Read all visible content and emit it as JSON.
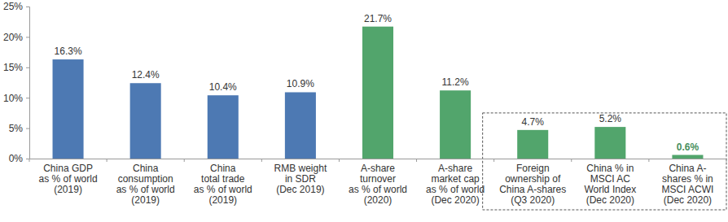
{
  "chart_data": {
    "type": "bar",
    "categories": [
      "China GDP\nas % of world\n(2019)",
      "China\nconsumption\nas % of world\n(2019)",
      "China\ntotal trade\nas % of world\n(2019)",
      "RMB weight\nin SDR\n(Dec 2019)",
      "A-share\nturnover\nas % of world\n(2020)",
      "A-share\nmarket cap\nas % of world\n(Dec 2020)",
      "Foreign\nownership of\nChina A-shares\n(Q3 2020)",
      "China % in\nMSCI AC\nWorld Index\n(Dec 2020)",
      "China A-\nshares % in\nMSCI ACWI\n(Dec 2020)"
    ],
    "values": [
      16.3,
      12.4,
      10.4,
      10.9,
      21.7,
      11.2,
      4.7,
      5.2,
      0.6
    ],
    "value_labels": [
      "16.3%",
      "12.4%",
      "10.4%",
      "10.9%",
      "21.7%",
      "11.2%",
      "4.7%",
      "5.2%",
      "0.6%"
    ],
    "colors": [
      "#4d79b3",
      "#4d79b3",
      "#4d79b3",
      "#4d79b3",
      "#52a56c",
      "#52a56c",
      "#52a56c",
      "#52a56c",
      "#52a56c"
    ],
    "ylim": [
      0,
      25
    ],
    "yticks": [
      {
        "value": 0,
        "label": "0%"
      },
      {
        "value": 5,
        "label": "5%"
      },
      {
        "value": 10,
        "label": "10%"
      },
      {
        "value": 15,
        "label": "15%"
      },
      {
        "value": 20,
        "label": "20%"
      },
      {
        "value": 25,
        "label": "25%"
      }
    ],
    "data_labels": true,
    "grid": false
  }
}
